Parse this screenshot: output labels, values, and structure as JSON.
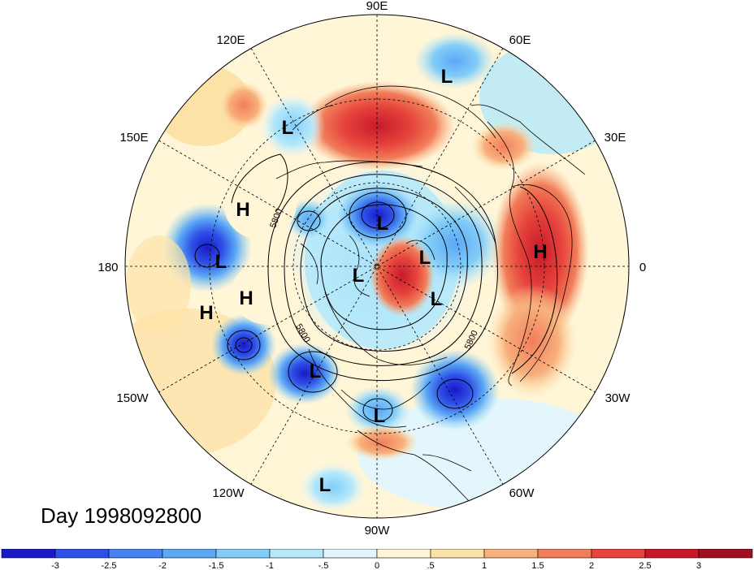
{
  "title": "Day 1998092800",
  "longitude_labels": [
    "90E",
    "60E",
    "30E",
    "0",
    "30W",
    "60W",
    "90W",
    "120W",
    "150W",
    "180",
    "150E",
    "120E"
  ],
  "pressure_centers": [
    {
      "label": "L"
    },
    {
      "label": "L"
    },
    {
      "label": "H"
    },
    {
      "label": "L"
    },
    {
      "label": "L"
    },
    {
      "label": "L"
    },
    {
      "label": "L"
    },
    {
      "label": "H"
    },
    {
      "label": "L"
    },
    {
      "label": "H"
    },
    {
      "label": "H"
    },
    {
      "label": "L"
    },
    {
      "label": "H"
    },
    {
      "label": "L"
    },
    {
      "label": "L"
    },
    {
      "label": "L"
    }
  ],
  "contour_labels": [
    "5800",
    "5800",
    "5800"
  ],
  "colorbar": {
    "ticks": [
      "-3",
      "-2.5",
      "-2",
      "-1.5",
      "-1",
      "-.5",
      "0",
      ".5",
      "1",
      "1.5",
      "2",
      "2.5",
      "3"
    ],
    "colors": [
      "#1919c8",
      "#2e50e6",
      "#4682f0",
      "#5ca8f5",
      "#82cdf8",
      "#b4e8fa",
      "#e2f6fb",
      "#fff5d7",
      "#fde2a8",
      "#f8b07c",
      "#f17e5a",
      "#e6443c",
      "#c8192a",
      "#a01020"
    ]
  },
  "colors": {
    "land_outline": "#000000",
    "grid": "#000000",
    "background": "#ffffff"
  }
}
